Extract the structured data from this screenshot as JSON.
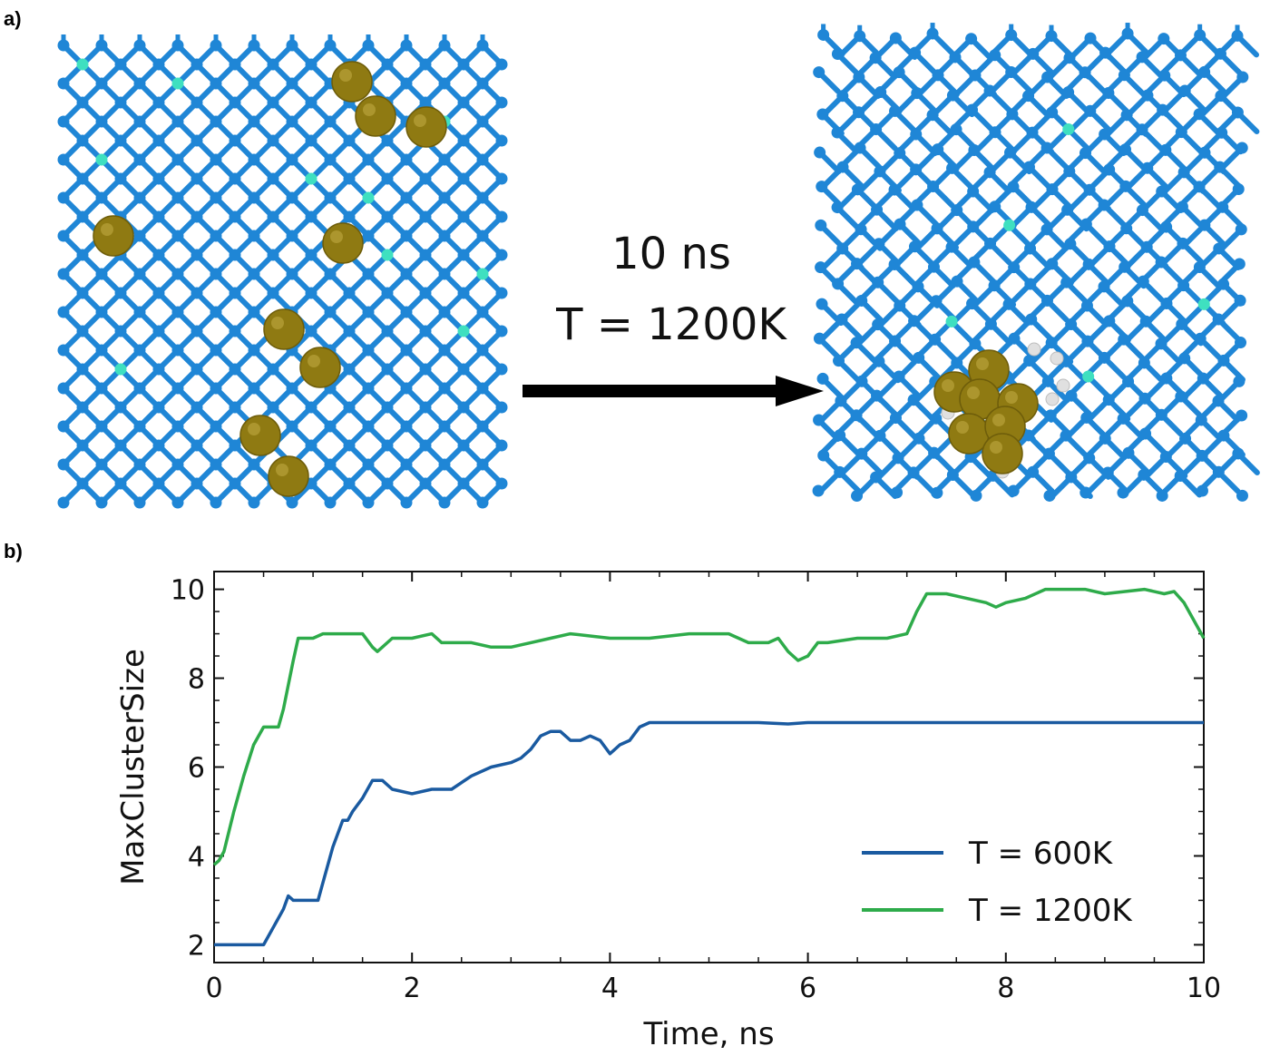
{
  "panel_a": {
    "label": "a)",
    "arrow_time": "10 ns",
    "arrow_temp": "T = 1200K",
    "colors": {
      "lattice": "#1f86d6",
      "defect": "#3fe0c0",
      "cluster_atom": "#8f7a12",
      "hydrogen": "#e0e0e0"
    }
  },
  "panel_b": {
    "label": "b)"
  },
  "chart_data": {
    "type": "line",
    "xlabel": "Time, ns",
    "ylabel": "MaxClusterSize",
    "xlim": [
      0,
      10
    ],
    "ylim": [
      1.6,
      10.4
    ],
    "xticks": [
      0,
      2,
      4,
      6,
      8,
      10
    ],
    "yticks": [
      2,
      4,
      6,
      8,
      10
    ],
    "grid": false,
    "legend_position": "bottom-right",
    "series": [
      {
        "name": "T = 600K",
        "color": "#1a5aa0",
        "x": [
          0,
          0.5,
          0.6,
          0.7,
          0.75,
          0.8,
          0.85,
          1.05,
          1.1,
          1.2,
          1.3,
          1.35,
          1.4,
          1.5,
          1.6,
          1.7,
          1.8,
          2.0,
          2.2,
          2.4,
          2.6,
          2.8,
          3.0,
          3.1,
          3.2,
          3.3,
          3.4,
          3.5,
          3.6,
          3.7,
          3.8,
          3.9,
          4.0,
          4.05,
          4.1,
          4.2,
          4.3,
          4.4,
          4.5,
          5.0,
          5.5,
          5.8,
          6.0,
          7.0,
          8.0,
          9.0,
          10.0
        ],
        "values": [
          2.0,
          2.0,
          2.4,
          2.8,
          3.1,
          3.0,
          3.0,
          3.0,
          3.4,
          4.2,
          4.8,
          4.8,
          5.0,
          5.3,
          5.7,
          5.7,
          5.5,
          5.4,
          5.5,
          5.5,
          5.8,
          6.0,
          6.1,
          6.2,
          6.4,
          6.7,
          6.8,
          6.8,
          6.6,
          6.6,
          6.7,
          6.6,
          6.3,
          6.4,
          6.5,
          6.6,
          6.9,
          7.0,
          7.0,
          7.0,
          7.0,
          6.97,
          7.0,
          7.0,
          7.0,
          7.0,
          7.0
        ]
      },
      {
        "name": "T = 1200K",
        "color": "#2eab4a",
        "x": [
          0,
          0.05,
          0.1,
          0.2,
          0.3,
          0.4,
          0.5,
          0.6,
          0.65,
          0.7,
          0.8,
          0.85,
          0.9,
          1.0,
          1.1,
          1.2,
          1.5,
          1.6,
          1.65,
          1.7,
          1.8,
          2.0,
          2.2,
          2.3,
          2.4,
          2.6,
          2.8,
          3.0,
          3.2,
          3.4,
          3.6,
          4.0,
          4.4,
          4.8,
          5.2,
          5.4,
          5.6,
          5.7,
          5.8,
          5.9,
          6.0,
          6.1,
          6.2,
          6.5,
          6.8,
          7.0,
          7.1,
          7.2,
          7.4,
          7.6,
          7.8,
          7.9,
          8.0,
          8.2,
          8.4,
          8.8,
          9.0,
          9.4,
          9.6,
          9.7,
          9.8,
          9.9,
          10.0
        ],
        "values": [
          3.8,
          3.9,
          4.1,
          5.0,
          5.8,
          6.5,
          6.9,
          6.9,
          6.9,
          7.3,
          8.4,
          8.9,
          8.9,
          8.9,
          9.0,
          9.0,
          9.0,
          8.7,
          8.6,
          8.7,
          8.9,
          8.9,
          9.0,
          8.8,
          8.8,
          8.8,
          8.7,
          8.7,
          8.8,
          8.9,
          9.0,
          8.9,
          8.9,
          9.0,
          9.0,
          8.8,
          8.8,
          8.9,
          8.6,
          8.4,
          8.5,
          8.8,
          8.8,
          8.9,
          8.9,
          9.0,
          9.5,
          9.9,
          9.9,
          9.8,
          9.7,
          9.6,
          9.7,
          9.8,
          10.0,
          10.0,
          9.9,
          10.0,
          9.9,
          9.95,
          9.7,
          9.3,
          8.9
        ]
      }
    ]
  }
}
